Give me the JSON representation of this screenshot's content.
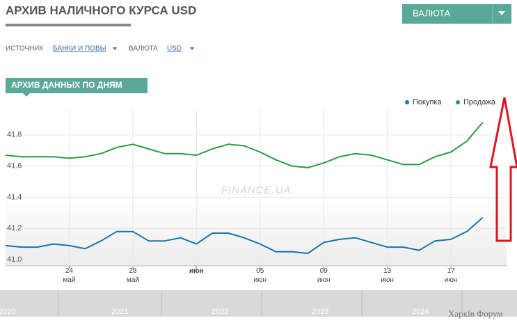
{
  "header": {
    "title": "АРХИВ НАЛИЧНОГО КУРСА USD",
    "button": "ВАЛЮТА",
    "source_label": "ИСТОЧНИК",
    "source_value": "БАНКИ И ПОВЫ",
    "currency_label": "ВАЛЮТА",
    "currency_value": "USD",
    "tab": "АРХИВ ДАННЫХ ПО ДНЯМ"
  },
  "chart_data": {
    "type": "line",
    "watermark": "FINANCE.UA",
    "categories": [
      null,
      null,
      null,
      null,
      "24 май",
      null,
      null,
      null,
      "28 май",
      null,
      null,
      null,
      "июн",
      null,
      null,
      null,
      "05 июн",
      null,
      null,
      null,
      "09 июн",
      null,
      null,
      null,
      "13 июн",
      null,
      null,
      null,
      "17 июн",
      null,
      null
    ],
    "series": [
      {
        "name": "Покупка",
        "color": "#1a74a8",
        "values": [
          41.09,
          41.08,
          41.08,
          41.1,
          41.09,
          41.07,
          41.12,
          41.18,
          41.18,
          41.12,
          41.12,
          41.14,
          41.1,
          41.17,
          41.17,
          41.14,
          41.1,
          41.05,
          41.05,
          41.04,
          41.11,
          41.13,
          41.14,
          41.11,
          41.08,
          41.08,
          41.06,
          41.12,
          41.13,
          41.18,
          41.27
        ]
      },
      {
        "name": "Продажа",
        "color": "#2b9a48",
        "values": [
          41.67,
          41.66,
          41.66,
          41.66,
          41.65,
          41.66,
          41.68,
          41.72,
          41.74,
          41.71,
          41.68,
          41.68,
          41.67,
          41.71,
          41.74,
          41.73,
          41.69,
          41.64,
          41.6,
          41.59,
          41.62,
          41.66,
          41.68,
          41.67,
          41.64,
          41.61,
          41.61,
          41.66,
          41.69,
          41.76,
          41.88
        ]
      }
    ],
    "ylim": [
      40.96,
      41.96
    ],
    "yticks": [
      {
        "value": 41.0,
        "label": "41.0"
      },
      41.2,
      41.4,
      41.6,
      41.8
    ],
    "grid": true,
    "legend": "top-right"
  },
  "navigator": {
    "years": [
      "2020",
      "2021",
      "2022",
      "2023",
      "2024"
    ]
  },
  "forum_watermark": "Харків Форум"
}
